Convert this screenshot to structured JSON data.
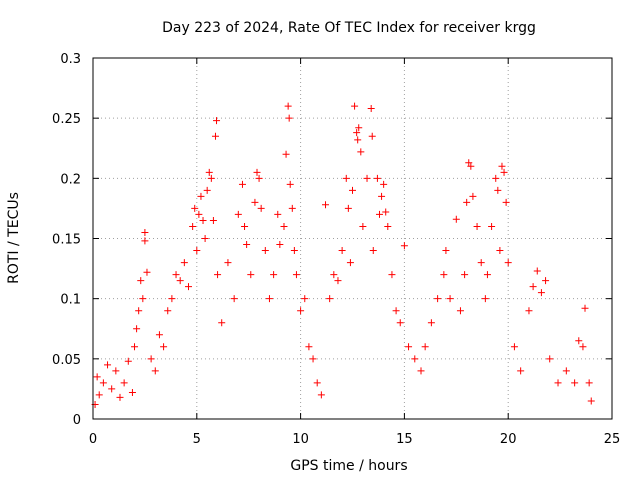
{
  "chart_data": {
    "type": "scatter",
    "title": "Day 223 of 2024, Rate Of TEC Index for receiver krgg",
    "xlabel": "GPS time / hours",
    "ylabel": "ROTI / TECUs",
    "xlim": [
      0,
      25
    ],
    "ylim": [
      0,
      0.3
    ],
    "x_ticks": [
      "0",
      "5",
      "10",
      "15",
      "20",
      "25"
    ],
    "y_ticks": [
      "0",
      "0.05",
      "0.1",
      "0.15",
      "0.2",
      "0.25",
      "0.3"
    ],
    "grid": true,
    "marker": "+",
    "color": "#ff0000",
    "series": [
      {
        "points": [
          [
            0.1,
            0.012
          ],
          [
            0.2,
            0.035
          ],
          [
            0.3,
            0.02
          ],
          [
            0.5,
            0.03
          ],
          [
            0.7,
            0.045
          ],
          [
            0.9,
            0.025
          ],
          [
            1.1,
            0.04
          ],
          [
            1.3,
            0.018
          ],
          [
            1.5,
            0.03
          ],
          [
            1.7,
            0.048
          ],
          [
            1.9,
            0.022
          ],
          [
            2.0,
            0.06
          ],
          [
            2.1,
            0.075
          ],
          [
            2.2,
            0.09
          ],
          [
            2.3,
            0.115
          ],
          [
            2.4,
            0.1
          ],
          [
            2.5,
            0.155
          ],
          [
            2.5,
            0.148
          ],
          [
            2.6,
            0.122
          ],
          [
            2.8,
            0.05
          ],
          [
            3.0,
            0.04
          ],
          [
            3.2,
            0.07
          ],
          [
            3.4,
            0.06
          ],
          [
            3.6,
            0.09
          ],
          [
            3.8,
            0.1
          ],
          [
            4.0,
            0.12
          ],
          [
            4.2,
            0.115
          ],
          [
            4.4,
            0.13
          ],
          [
            4.6,
            0.11
          ],
          [
            4.8,
            0.16
          ],
          [
            4.9,
            0.175
          ],
          [
            5.0,
            0.14
          ],
          [
            5.1,
            0.17
          ],
          [
            5.2,
            0.185
          ],
          [
            5.3,
            0.165
          ],
          [
            5.4,
            0.15
          ],
          [
            5.5,
            0.19
          ],
          [
            5.6,
            0.205
          ],
          [
            5.7,
            0.2
          ],
          [
            5.8,
            0.165
          ],
          [
            5.9,
            0.235
          ],
          [
            5.95,
            0.248
          ],
          [
            6.0,
            0.12
          ],
          [
            6.2,
            0.08
          ],
          [
            6.5,
            0.13
          ],
          [
            6.8,
            0.1
          ],
          [
            7.0,
            0.17
          ],
          [
            7.2,
            0.195
          ],
          [
            7.3,
            0.16
          ],
          [
            7.4,
            0.145
          ],
          [
            7.6,
            0.12
          ],
          [
            7.8,
            0.18
          ],
          [
            7.9,
            0.205
          ],
          [
            8.0,
            0.2
          ],
          [
            8.1,
            0.175
          ],
          [
            8.3,
            0.14
          ],
          [
            8.5,
            0.1
          ],
          [
            8.7,
            0.12
          ],
          [
            8.9,
            0.17
          ],
          [
            9.0,
            0.145
          ],
          [
            9.2,
            0.16
          ],
          [
            9.3,
            0.22
          ],
          [
            9.4,
            0.26
          ],
          [
            9.45,
            0.25
          ],
          [
            9.5,
            0.195
          ],
          [
            9.6,
            0.175
          ],
          [
            9.7,
            0.14
          ],
          [
            9.8,
            0.12
          ],
          [
            10.0,
            0.09
          ],
          [
            10.2,
            0.1
          ],
          [
            10.4,
            0.06
          ],
          [
            10.6,
            0.05
          ],
          [
            10.8,
            0.03
          ],
          [
            11.0,
            0.02
          ],
          [
            11.2,
            0.178
          ],
          [
            11.4,
            0.1
          ],
          [
            11.6,
            0.12
          ],
          [
            11.8,
            0.115
          ],
          [
            12.0,
            0.14
          ],
          [
            12.2,
            0.2
          ],
          [
            12.3,
            0.175
          ],
          [
            12.4,
            0.13
          ],
          [
            12.5,
            0.19
          ],
          [
            12.6,
            0.26
          ],
          [
            12.7,
            0.238
          ],
          [
            12.75,
            0.232
          ],
          [
            12.8,
            0.242
          ],
          [
            12.9,
            0.222
          ],
          [
            13.0,
            0.16
          ],
          [
            13.2,
            0.2
          ],
          [
            13.4,
            0.258
          ],
          [
            13.45,
            0.235
          ],
          [
            13.5,
            0.14
          ],
          [
            13.7,
            0.2
          ],
          [
            13.8,
            0.17
          ],
          [
            13.9,
            0.185
          ],
          [
            14.0,
            0.195
          ],
          [
            14.1,
            0.172
          ],
          [
            14.2,
            0.16
          ],
          [
            14.4,
            0.12
          ],
          [
            14.6,
            0.09
          ],
          [
            14.8,
            0.08
          ],
          [
            15.0,
            0.144
          ],
          [
            15.2,
            0.06
          ],
          [
            15.5,
            0.05
          ],
          [
            15.8,
            0.04
          ],
          [
            16.0,
            0.06
          ],
          [
            16.3,
            0.08
          ],
          [
            16.6,
            0.1
          ],
          [
            16.9,
            0.12
          ],
          [
            17.0,
            0.14
          ],
          [
            17.2,
            0.1
          ],
          [
            17.5,
            0.166
          ],
          [
            17.7,
            0.09
          ],
          [
            17.9,
            0.12
          ],
          [
            18.0,
            0.18
          ],
          [
            18.1,
            0.213
          ],
          [
            18.2,
            0.21
          ],
          [
            18.3,
            0.185
          ],
          [
            18.5,
            0.16
          ],
          [
            18.7,
            0.13
          ],
          [
            18.9,
            0.1
          ],
          [
            19.0,
            0.12
          ],
          [
            19.2,
            0.16
          ],
          [
            19.4,
            0.2
          ],
          [
            19.5,
            0.19
          ],
          [
            19.6,
            0.14
          ],
          [
            19.7,
            0.21
          ],
          [
            19.8,
            0.205
          ],
          [
            19.9,
            0.18
          ],
          [
            20.0,
            0.13
          ],
          [
            20.3,
            0.06
          ],
          [
            20.6,
            0.04
          ],
          [
            21.0,
            0.09
          ],
          [
            21.2,
            0.11
          ],
          [
            21.4,
            0.123
          ],
          [
            21.6,
            0.105
          ],
          [
            21.8,
            0.115
          ],
          [
            22.0,
            0.05
          ],
          [
            22.4,
            0.03
          ],
          [
            22.8,
            0.04
          ],
          [
            23.2,
            0.03
          ],
          [
            23.4,
            0.065
          ],
          [
            23.6,
            0.06
          ],
          [
            23.7,
            0.092
          ],
          [
            23.9,
            0.03
          ],
          [
            24.0,
            0.015
          ]
        ]
      }
    ]
  }
}
